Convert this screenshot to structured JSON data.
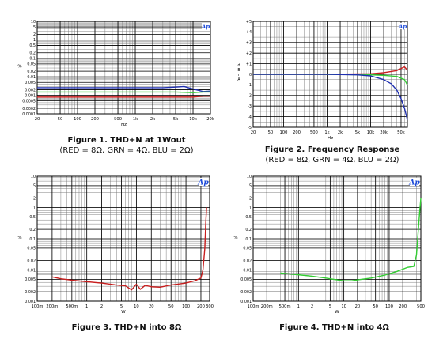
{
  "colors": {
    "red": "#c81e1e",
    "green": "#33cc33",
    "blue": "#1f2fb0",
    "grid": "#000000",
    "logo": "#1e4bd8"
  },
  "captions": {
    "fig1_title": "Figure 1. THD+N at 1Wout",
    "fig1_sub": "(RED = 8Ω, GRN = 4Ω, BLU = 2Ω)",
    "fig2_title": "Figure 2. Frequency Response",
    "fig2_sub": "(RED = 8Ω, GRN = 4Ω, BLU = 2Ω)",
    "fig3_title": "Figure 3. THD+N into 8Ω",
    "fig4_title": "Figure 4. THD+N into 4Ω"
  },
  "chart_data": [
    {
      "type": "line",
      "id": "fig1",
      "logo": "Ap",
      "xlabel": "Hz",
      "ylabel": "%",
      "xscale": "log",
      "yscale": "log",
      "xlim": [
        20,
        20000
      ],
      "ylim": [
        0.0001,
        10
      ],
      "xticks": [
        "20",
        "50",
        "100",
        "200",
        "500",
        "1k",
        "2k",
        "5k",
        "10k",
        "20k"
      ],
      "xtick_values": [
        20,
        50,
        100,
        200,
        500,
        1000,
        2000,
        5000,
        10000,
        20000
      ],
      "yticks": [
        "10",
        "5",
        "2",
        "1",
        "0.5",
        "0.2",
        "0.1",
        "0.05",
        "0.02",
        "0.01",
        "0.005",
        "0.002",
        "0.001",
        "0.0005",
        "0.0002",
        "0.0001"
      ],
      "ytick_values": [
        10,
        5,
        2,
        1,
        0.5,
        0.2,
        0.1,
        0.05,
        0.02,
        0.01,
        0.005,
        0.002,
        0.001,
        0.0005,
        0.0002,
        0.0001
      ],
      "series": [
        {
          "color": "blue",
          "x": [
            20,
            100,
            1000,
            3000,
            5000,
            7000,
            10000,
            15000,
            20000
          ],
          "y": [
            0.0026,
            0.0026,
            0.0026,
            0.0026,
            0.0028,
            0.003,
            0.0022,
            0.0016,
            0.0017
          ]
        },
        {
          "color": "green",
          "x": [
            20,
            100,
            1000,
            5000,
            10000,
            15000,
            20000
          ],
          "y": [
            0.0015,
            0.0015,
            0.0015,
            0.0015,
            0.0014,
            0.0015,
            0.0015
          ]
        },
        {
          "color": "red",
          "x": [
            20,
            100,
            1000,
            10000,
            15000,
            20000
          ],
          "y": [
            0.0008,
            0.0008,
            0.0008,
            0.0008,
            0.0009,
            0.0009
          ]
        }
      ]
    },
    {
      "type": "line",
      "id": "fig2",
      "logo": "Ap",
      "xlabel": "Hz",
      "ylabel": "d B r A",
      "xscale": "log",
      "yscale": "linear",
      "xlim": [
        20,
        70000
      ],
      "ylim": [
        -5,
        5
      ],
      "xticks": [
        "20",
        "50",
        "100",
        "200",
        "500",
        "1k",
        "2k",
        "5k",
        "10k",
        "20k",
        "50k"
      ],
      "xtick_values": [
        20,
        50,
        100,
        200,
        500,
        1000,
        2000,
        5000,
        10000,
        20000,
        50000
      ],
      "yticks": [
        "+5",
        "+4",
        "+3",
        "+2",
        "+1",
        "0",
        "-1",
        "-2",
        "-3",
        "-4",
        "-5"
      ],
      "ytick_values": [
        5,
        4,
        3,
        2,
        1,
        0,
        -1,
        -2,
        -3,
        -4,
        -5
      ],
      "series": [
        {
          "color": "red",
          "x": [
            20,
            1000,
            10000,
            20000,
            40000,
            50000,
            60000,
            70000
          ],
          "y": [
            0,
            0,
            0.05,
            0.15,
            0.35,
            0.55,
            0.7,
            0.4
          ]
        },
        {
          "color": "green",
          "x": [
            20,
            1000,
            10000,
            20000,
            40000,
            60000,
            70000
          ],
          "y": [
            0,
            0,
            -0.05,
            -0.1,
            -0.2,
            -0.5,
            -1.0
          ]
        },
        {
          "color": "blue",
          "x": [
            20,
            1000,
            5000,
            10000,
            20000,
            30000,
            40000,
            50000,
            60000,
            70000
          ],
          "y": [
            0,
            0,
            -0.05,
            -0.15,
            -0.5,
            -0.9,
            -1.5,
            -2.3,
            -3.2,
            -4.3
          ]
        }
      ]
    },
    {
      "type": "line",
      "id": "fig3",
      "logo": "Ap",
      "xlabel": "W",
      "ylabel": "%",
      "xscale": "log",
      "yscale": "log",
      "xlim": [
        0.1,
        300
      ],
      "ylim": [
        0.001,
        10
      ],
      "xticks": [
        "100m",
        "200m",
        "500m",
        "1",
        "2",
        "5",
        "10",
        "20",
        "50",
        "100",
        "200",
        "300"
      ],
      "xtick_values": [
        0.1,
        0.2,
        0.5,
        1,
        2,
        5,
        10,
        20,
        50,
        100,
        200,
        300
      ],
      "yticks": [
        "10",
        "5",
        "2",
        "1",
        "0.5",
        "0.2",
        "0.1",
        "0.05",
        "0.02",
        "0.01",
        "0.005",
        "0.002",
        "0.001"
      ],
      "ytick_values": [
        10,
        5,
        2,
        1,
        0.5,
        0.2,
        0.1,
        0.05,
        0.02,
        0.01,
        0.005,
        0.002,
        0.001
      ],
      "series": [
        {
          "color": "red",
          "x": [
            0.2,
            0.3,
            0.5,
            1,
            2,
            4,
            6,
            8,
            10,
            12,
            15,
            20,
            30,
            50,
            100,
            150,
            200,
            220,
            240,
            250,
            260
          ],
          "y": [
            0.006,
            0.0052,
            0.0047,
            0.0042,
            0.0038,
            0.0033,
            0.0031,
            0.0023,
            0.0035,
            0.0024,
            0.0032,
            0.0029,
            0.0028,
            0.0033,
            0.0038,
            0.0045,
            0.0055,
            0.01,
            0.05,
            0.3,
            1.0
          ]
        }
      ]
    },
    {
      "type": "line",
      "id": "fig4",
      "logo": "Ap",
      "xlabel": "W",
      "ylabel": "%",
      "xscale": "log",
      "yscale": "log",
      "xlim": [
        0.1,
        500
      ],
      "ylim": [
        0.001,
        10
      ],
      "xticks": [
        "100m",
        "200m",
        "500m",
        "1",
        "2",
        "5",
        "10",
        "20",
        "50",
        "100",
        "200",
        "500"
      ],
      "xtick_values": [
        0.1,
        0.2,
        0.5,
        1,
        2,
        5,
        10,
        20,
        50,
        100,
        200,
        500
      ],
      "yticks": [
        "10",
        "5",
        "2",
        "1",
        "0.5",
        "0.2",
        "0.1",
        "0.05",
        "0.02",
        "0.01",
        "0.005",
        "0.002",
        "0.001"
      ],
      "ytick_values": [
        10,
        5,
        2,
        1,
        0.5,
        0.2,
        0.1,
        0.05,
        0.02,
        0.01,
        0.005,
        0.002,
        0.001
      ],
      "series": [
        {
          "color": "green",
          "x": [
            0.4,
            0.6,
            1,
            2,
            4,
            6,
            10,
            15,
            20,
            40,
            80,
            150,
            250,
            350,
            400,
            450,
            480,
            500
          ],
          "y": [
            0.008,
            0.0075,
            0.007,
            0.0063,
            0.0055,
            0.005,
            0.0045,
            0.0045,
            0.0048,
            0.0055,
            0.0068,
            0.009,
            0.012,
            0.013,
            0.03,
            0.3,
            1.0,
            2.0
          ]
        }
      ]
    }
  ]
}
